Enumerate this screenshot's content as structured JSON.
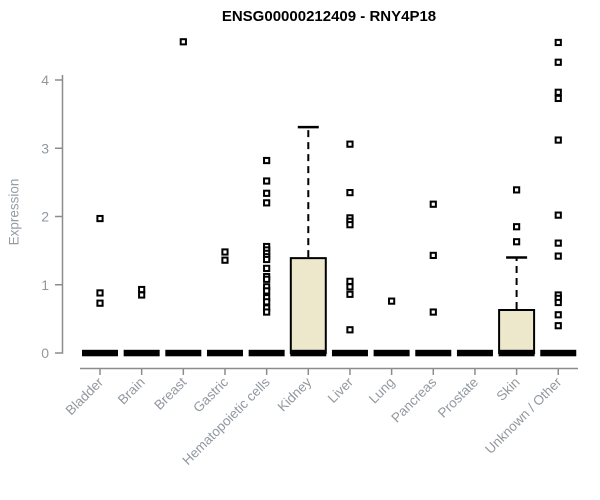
{
  "title": "ENSG00000212409 - RNY4P18",
  "chart_data": {
    "type": "boxplot",
    "title": "ENSG00000212409 - RNY4P18",
    "xlabel": "",
    "ylabel": "Expression",
    "ylim": [
      0,
      4.7
    ],
    "yticks": [
      0,
      1,
      2,
      3,
      4
    ],
    "grid": false,
    "legend": false,
    "categories": [
      "Bladder",
      "Brain",
      "Breast",
      "Gastric",
      "Hematopoietic cells",
      "Kidney",
      "Liver",
      "Lung",
      "Pancreas",
      "Prostate",
      "Skin",
      "Unknown / Other"
    ],
    "boxes": [
      {
        "category": "Bladder",
        "q1": 0,
        "median": 0,
        "q3": 0,
        "whisker_low": 0,
        "whisker_high": 0,
        "outliers": [
          1.97,
          0.88,
          0.73
        ]
      },
      {
        "category": "Brain",
        "q1": 0,
        "median": 0,
        "q3": 0,
        "whisker_low": 0,
        "whisker_high": 0,
        "outliers": [
          0.93,
          0.85
        ]
      },
      {
        "category": "Breast",
        "q1": 0,
        "median": 0,
        "q3": 0,
        "whisker_low": 0,
        "whisker_high": 0,
        "outliers": [
          4.56
        ]
      },
      {
        "category": "Gastric",
        "q1": 0,
        "median": 0,
        "q3": 0,
        "whisker_low": 0,
        "whisker_high": 0,
        "outliers": [
          1.48,
          1.36
        ]
      },
      {
        "category": "Hematopoietic cells",
        "q1": 0,
        "median": 0,
        "q3": 0,
        "whisker_low": 0,
        "whisker_high": 0,
        "outliers": [
          2.82,
          2.52,
          2.34,
          2.2,
          1.56,
          1.51,
          1.46,
          1.41,
          1.37,
          1.24,
          1.12,
          1.08,
          0.97,
          0.91,
          0.81,
          0.75,
          0.66,
          0.6
        ]
      },
      {
        "category": "Kidney",
        "q1": 0,
        "median": 0,
        "q3": 1.39,
        "whisker_low": 0,
        "whisker_high": 3.31,
        "outliers": []
      },
      {
        "category": "Liver",
        "q1": 0,
        "median": 0,
        "q3": 0,
        "whisker_low": 0,
        "whisker_high": 0,
        "outliers": [
          3.06,
          2.35,
          1.98,
          1.93,
          1.88,
          1.05,
          0.97,
          0.86,
          0.34
        ]
      },
      {
        "category": "Lung",
        "q1": 0,
        "median": 0,
        "q3": 0,
        "whisker_low": 0,
        "whisker_high": 0,
        "outliers": [
          0.76
        ]
      },
      {
        "category": "Pancreas",
        "q1": 0,
        "median": 0,
        "q3": 0,
        "whisker_low": 0,
        "whisker_high": 0,
        "outliers": [
          2.18,
          1.43,
          0.6
        ]
      },
      {
        "category": "Prostate",
        "q1": 0,
        "median": 0,
        "q3": 0,
        "whisker_low": 0,
        "whisker_high": 0,
        "outliers": []
      },
      {
        "category": "Skin",
        "q1": 0,
        "median": 0,
        "q3": 0.63,
        "whisker_low": 0,
        "whisker_high": 1.4,
        "outliers": [
          2.39,
          1.85,
          1.63
        ]
      },
      {
        "category": "Unknown / Other",
        "q1": 0,
        "median": 0,
        "q3": 0,
        "whisker_low": 0,
        "whisker_high": 0,
        "outliers": [
          4.55,
          4.26,
          3.82,
          3.73,
          3.12,
          2.02,
          1.61,
          1.42,
          0.85,
          0.8,
          0.74,
          0.56,
          0.4
        ]
      }
    ],
    "colors": {
      "box_fill": "#ede7cb",
      "box_stroke": "#000000",
      "median_bar": "#000000",
      "whisker": "#000000",
      "outlier": "#000000",
      "axis": "#8c8c8c",
      "tick_label": "#9298a0",
      "title": "#000000"
    }
  }
}
